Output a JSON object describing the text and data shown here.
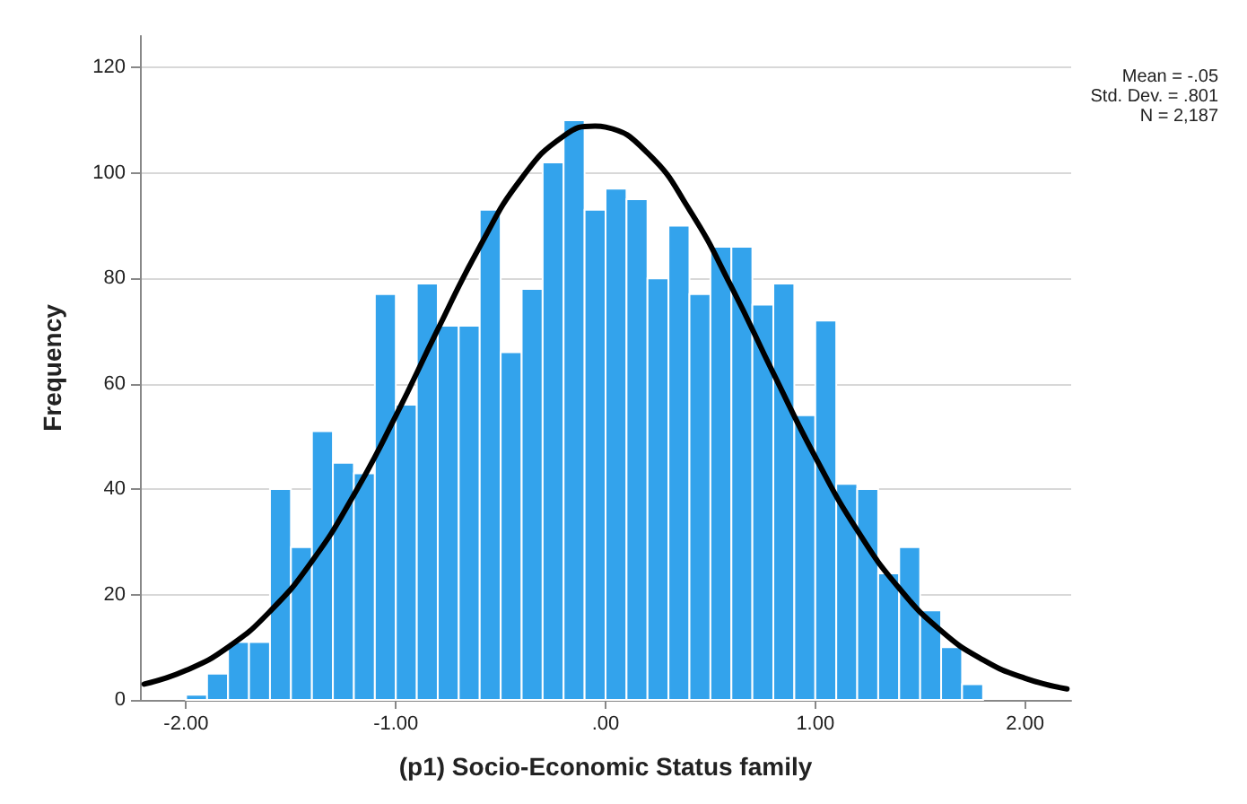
{
  "chart_data": {
    "type": "histogram",
    "xlabel": "(p1) Socio-Economic Status family",
    "ylabel": "Frequency",
    "bins": [
      -2.0,
      -1.9,
      -1.8,
      -1.7,
      -1.6,
      -1.5,
      -1.4,
      -1.3,
      -1.2,
      -1.1,
      -1.0,
      -0.9,
      -0.8,
      -0.7,
      -0.6,
      -0.5,
      -0.4,
      -0.3,
      -0.2,
      -0.1,
      0.0,
      0.1,
      0.2,
      0.3,
      0.4,
      0.5,
      0.6,
      0.7,
      0.8,
      0.9,
      1.0,
      1.1,
      1.2,
      1.3,
      1.4,
      1.5,
      1.6,
      1.7,
      1.8
    ],
    "values": [
      1,
      5,
      11,
      11,
      40,
      29,
      51,
      45,
      43,
      77,
      56,
      79,
      71,
      71,
      93,
      66,
      78,
      102,
      110,
      93,
      97,
      95,
      80,
      90,
      77,
      86,
      86,
      75,
      79,
      54,
      72,
      41,
      40,
      24,
      29,
      17,
      10,
      3
    ],
    "color": "#33a3ec",
    "series": [
      {
        "type": "line",
        "color": "#000000",
        "x": [
          -2.2,
          -2.0,
          -1.8,
          -1.6,
          -1.4,
          -1.2,
          -1.0,
          -0.8,
          -0.6,
          -0.4,
          -0.2,
          -0.05,
          0.0,
          0.2,
          0.4,
          0.6,
          0.8,
          1.0,
          1.2,
          1.4,
          1.6,
          1.8,
          2.0,
          2.2
        ],
        "values": [
          3.0,
          5.6,
          10.0,
          16.8,
          26.3,
          38.9,
          53.9,
          70.3,
          86.0,
          99.0,
          107.0,
          108.9,
          108.7,
          103.8,
          93.0,
          78.4,
          62.0,
          46.1,
          32.2,
          21.2,
          13.1,
          7.6,
          4.1,
          2.1
        ]
      }
    ],
    "xlim": [
      -2.22,
      2.22
    ],
    "xticks": [
      {
        "value": -2,
        "label": "-2.00"
      },
      {
        "value": -1,
        "label": "-1.00"
      },
      {
        "value": 0,
        "label": ".00"
      },
      {
        "value": 1,
        "label": "1.00"
      },
      {
        "value": 2,
        "label": "2.00"
      }
    ],
    "ylim": [
      0,
      126
    ],
    "yticks": [
      0,
      20,
      40,
      60,
      80,
      100,
      120
    ],
    "grid": "y",
    "marker": "none",
    "line_style": "solid",
    "annotations": [
      "Mean = -.05",
      "Std. Dev. = .801",
      "N = 2,187"
    ]
  }
}
